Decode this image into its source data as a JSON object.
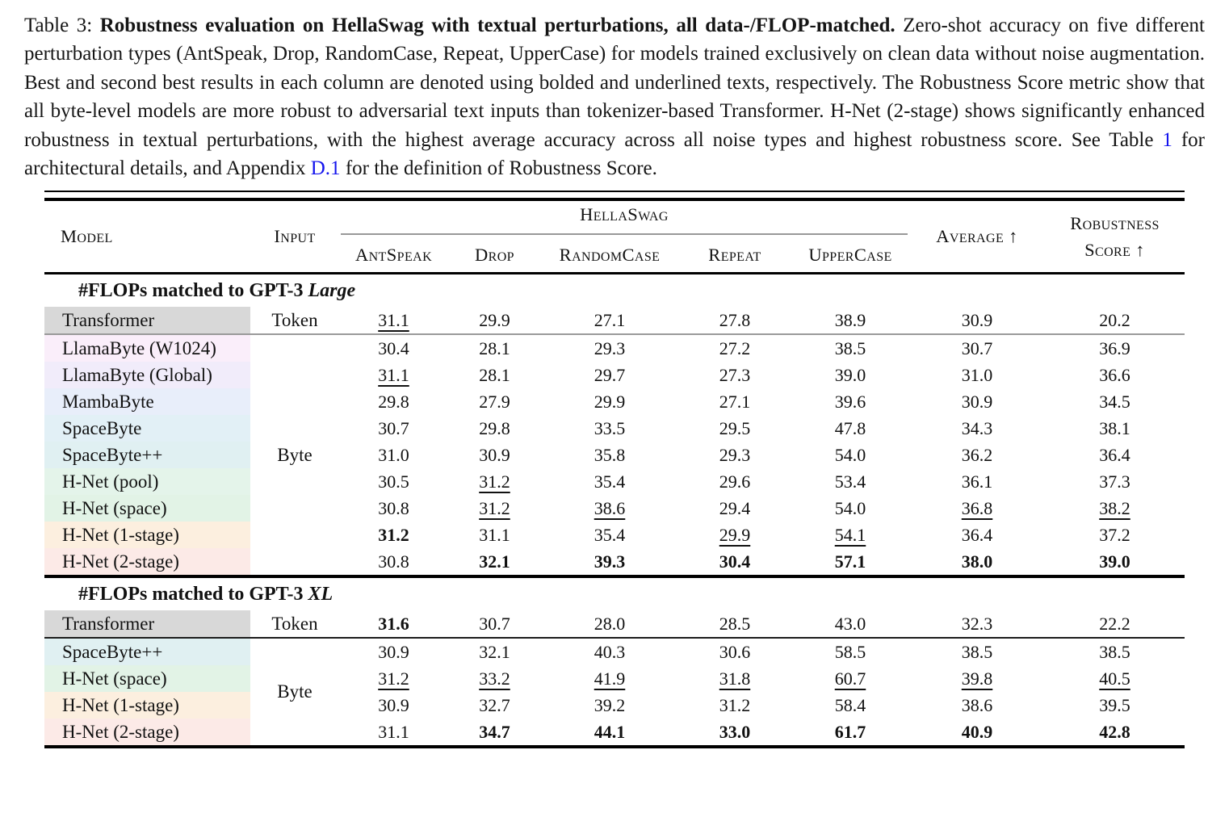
{
  "caption": {
    "segments": [
      {
        "text": "Table 3: ",
        "style": "normal",
        "name": "caption-label"
      },
      {
        "text": "Robustness evaluation on HellaSwag with textual perturbations, all data-/FLOP-matched.",
        "style": "bold",
        "name": "caption-title"
      },
      {
        "text": " Zero-shot accuracy on five different perturbation types (AntSpeak, Drop, RandomCase, Repeat, UpperCase) for models trained exclusively on clean data without noise augmentation. Best and second best results in each column are denoted using bolded and underlined texts, respectively. The Robustness Score metric show that all byte-level models are more robust to adversarial text inputs than tokenizer-based Transformer. H-Net (2-stage) shows significantly enhanced robustness in textual perturbations, with the highest average accuracy across all noise types and highest robustness score. See Table ",
        "style": "normal",
        "name": "caption-body"
      },
      {
        "text": "1",
        "style": "link",
        "name": "link-table-1"
      },
      {
        "text": " for architectural details, and Appendix ",
        "style": "normal",
        "name": "caption-body"
      },
      {
        "text": "D.1",
        "style": "link",
        "name": "link-appendix-d1"
      },
      {
        "text": " for the definition of Robustness Score.",
        "style": "normal",
        "name": "caption-body"
      }
    ],
    "link_color": "#1414ee"
  },
  "table": {
    "header": {
      "model": "Model",
      "input": "Input",
      "group": "HellaSwag",
      "perturbations": [
        "AntSpeak",
        "Drop",
        "RandomCase",
        "Repeat",
        "UpperCase"
      ],
      "average": "Average ↑",
      "robustness_line1": "Robustness",
      "robustness_line2": "Score ↑"
    },
    "sections": [
      {
        "title_plain": "#FLOPs matched to GPT-3 ",
        "title_italic": "Large",
        "byte_label": "Byte",
        "rows": [
          {
            "model": "Transformer",
            "input": "Token",
            "bg": "#d8d8d8",
            "divider_after": "gray",
            "cells": [
              {
                "v": "31.1",
                "s": "u"
              },
              {
                "v": "29.9",
                "s": ""
              },
              {
                "v": "27.1",
                "s": ""
              },
              {
                "v": "27.8",
                "s": ""
              },
              {
                "v": "38.9",
                "s": ""
              },
              {
                "v": "30.9",
                "s": ""
              },
              {
                "v": "20.2",
                "s": ""
              }
            ]
          },
          {
            "model": "LlamaByte (W1024)",
            "bg": "#faeefa",
            "cells": [
              {
                "v": "30.4",
                "s": ""
              },
              {
                "v": "28.1",
                "s": ""
              },
              {
                "v": "29.3",
                "s": ""
              },
              {
                "v": "27.2",
                "s": ""
              },
              {
                "v": "38.5",
                "s": ""
              },
              {
                "v": "30.7",
                "s": ""
              },
              {
                "v": "36.9",
                "s": ""
              }
            ]
          },
          {
            "model": "LlamaByte (Global)",
            "bg": "#f1ecfa",
            "cells": [
              {
                "v": "31.1",
                "s": "u"
              },
              {
                "v": "28.1",
                "s": ""
              },
              {
                "v": "29.7",
                "s": ""
              },
              {
                "v": "27.3",
                "s": ""
              },
              {
                "v": "39.0",
                "s": ""
              },
              {
                "v": "31.0",
                "s": ""
              },
              {
                "v": "36.6",
                "s": ""
              }
            ]
          },
          {
            "model": "MambaByte",
            "bg": "#e8eefa",
            "cells": [
              {
                "v": "29.8",
                "s": ""
              },
              {
                "v": "27.9",
                "s": ""
              },
              {
                "v": "29.9",
                "s": ""
              },
              {
                "v": "27.1",
                "s": ""
              },
              {
                "v": "39.6",
                "s": ""
              },
              {
                "v": "30.9",
                "s": ""
              },
              {
                "v": "34.5",
                "s": ""
              }
            ]
          },
          {
            "model": "SpaceByte",
            "bg": "#e2f0f6",
            "cells": [
              {
                "v": "30.7",
                "s": ""
              },
              {
                "v": "29.8",
                "s": ""
              },
              {
                "v": "33.5",
                "s": ""
              },
              {
                "v": "29.5",
                "s": ""
              },
              {
                "v": "47.8",
                "s": ""
              },
              {
                "v": "34.3",
                "s": ""
              },
              {
                "v": "38.1",
                "s": ""
              }
            ]
          },
          {
            "model": "SpaceByte++",
            "bg": "#e0f0f2",
            "cells": [
              {
                "v": "31.0",
                "s": ""
              },
              {
                "v": "30.9",
                "s": ""
              },
              {
                "v": "35.8",
                "s": ""
              },
              {
                "v": "29.3",
                "s": ""
              },
              {
                "v": "54.0",
                "s": ""
              },
              {
                "v": "36.2",
                "s": ""
              },
              {
                "v": "36.4",
                "s": ""
              }
            ]
          },
          {
            "model": "H-Net (pool)",
            "bg": "#e4f4ea",
            "cells": [
              {
                "v": "30.5",
                "s": ""
              },
              {
                "v": "31.2",
                "s": "u"
              },
              {
                "v": "35.4",
                "s": ""
              },
              {
                "v": "29.6",
                "s": ""
              },
              {
                "v": "53.4",
                "s": ""
              },
              {
                "v": "36.1",
                "s": ""
              },
              {
                "v": "37.3",
                "s": ""
              }
            ]
          },
          {
            "model": "H-Net (space)",
            "bg": "#e2f3e6",
            "cells": [
              {
                "v": "30.8",
                "s": ""
              },
              {
                "v": "31.2",
                "s": "u"
              },
              {
                "v": "38.6",
                "s": "u"
              },
              {
                "v": "29.4",
                "s": ""
              },
              {
                "v": "54.0",
                "s": ""
              },
              {
                "v": "36.8",
                "s": "u"
              },
              {
                "v": "38.2",
                "s": "u"
              }
            ]
          },
          {
            "model": "H-Net (1-stage)",
            "bg": "#fcefdf",
            "cells": [
              {
                "v": "31.2",
                "s": "b"
              },
              {
                "v": "31.1",
                "s": ""
              },
              {
                "v": "35.4",
                "s": ""
              },
              {
                "v": "29.9",
                "s": "u"
              },
              {
                "v": "54.1",
                "s": "u"
              },
              {
                "v": "36.4",
                "s": ""
              },
              {
                "v": "37.2",
                "s": ""
              }
            ]
          },
          {
            "model": "H-Net (2-stage)",
            "bg": "#fceae7",
            "cells": [
              {
                "v": "30.8",
                "s": ""
              },
              {
                "v": "32.1",
                "s": "b"
              },
              {
                "v": "39.3",
                "s": "b"
              },
              {
                "v": "30.4",
                "s": "b"
              },
              {
                "v": "57.1",
                "s": "b"
              },
              {
                "v": "38.0",
                "s": "b"
              },
              {
                "v": "39.0",
                "s": "b"
              }
            ]
          }
        ]
      },
      {
        "title_plain": "#FLOPs matched to GPT-3 ",
        "title_italic": "XL",
        "byte_label": "Byte",
        "rows": [
          {
            "model": "Transformer",
            "input": "Token",
            "bg": "#d8d8d8",
            "divider_after": "black",
            "cells": [
              {
                "v": "31.6",
                "s": "b"
              },
              {
                "v": "30.7",
                "s": ""
              },
              {
                "v": "28.0",
                "s": ""
              },
              {
                "v": "28.5",
                "s": ""
              },
              {
                "v": "43.0",
                "s": ""
              },
              {
                "v": "32.3",
                "s": ""
              },
              {
                "v": "22.2",
                "s": ""
              }
            ]
          },
          {
            "model": "SpaceByte++",
            "bg": "#e0f0f2",
            "cells": [
              {
                "v": "30.9",
                "s": ""
              },
              {
                "v": "32.1",
                "s": ""
              },
              {
                "v": "40.3",
                "s": ""
              },
              {
                "v": "30.6",
                "s": ""
              },
              {
                "v": "58.5",
                "s": ""
              },
              {
                "v": "38.5",
                "s": ""
              },
              {
                "v": "38.5",
                "s": ""
              }
            ]
          },
          {
            "model": "H-Net (space)",
            "bg": "#e2f3e6",
            "cells": [
              {
                "v": "31.2",
                "s": "u"
              },
              {
                "v": "33.2",
                "s": "u"
              },
              {
                "v": "41.9",
                "s": "u"
              },
              {
                "v": "31.8",
                "s": "u"
              },
              {
                "v": "60.7",
                "s": "u"
              },
              {
                "v": "39.8",
                "s": "u"
              },
              {
                "v": "40.5",
                "s": "u"
              }
            ]
          },
          {
            "model": "H-Net (1-stage)",
            "bg": "#fcefdf",
            "cells": [
              {
                "v": "30.9",
                "s": ""
              },
              {
                "v": "32.7",
                "s": ""
              },
              {
                "v": "39.2",
                "s": ""
              },
              {
                "v": "31.2",
                "s": ""
              },
              {
                "v": "58.4",
                "s": ""
              },
              {
                "v": "38.6",
                "s": ""
              },
              {
                "v": "39.5",
                "s": ""
              }
            ]
          },
          {
            "model": "H-Net (2-stage)",
            "bg": "#fceae7",
            "cells": [
              {
                "v": "31.1",
                "s": ""
              },
              {
                "v": "34.7",
                "s": "b"
              },
              {
                "v": "44.1",
                "s": "b"
              },
              {
                "v": "33.0",
                "s": "b"
              },
              {
                "v": "61.7",
                "s": "b"
              },
              {
                "v": "40.9",
                "s": "b"
              },
              {
                "v": "42.8",
                "s": "b"
              }
            ]
          }
        ]
      }
    ]
  }
}
